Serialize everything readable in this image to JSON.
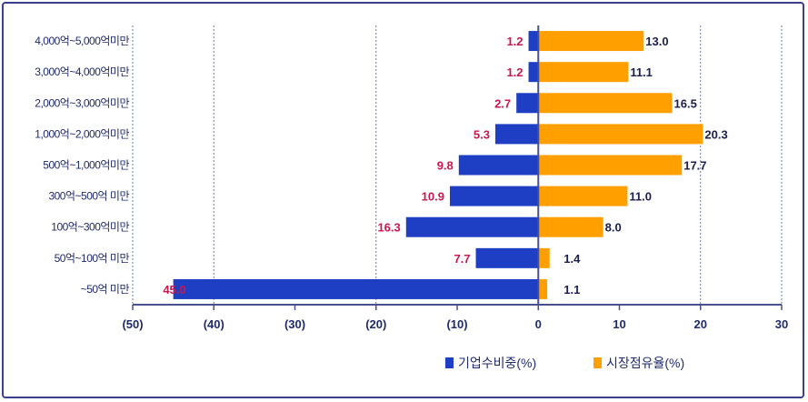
{
  "chart_data": {
    "type": "bar",
    "orientation": "horizontal-diverging",
    "categories": [
      "4,000억~5,000억미만",
      "3,000억~4,000억미만",
      "2,000억~3,000억미만",
      "1,000억~2,000억미만",
      "500억~1,000억미만",
      "300억~500억  미만",
      "100억~300억미만",
      "50억~100억  미만",
      "~50억  미만"
    ],
    "series": [
      {
        "name": "기업수비중(%)",
        "color": "#1e3fc4",
        "direction": "left",
        "values": [
          1.2,
          1.2,
          2.7,
          5.3,
          9.8,
          10.9,
          16.3,
          7.7,
          45.0
        ],
        "value_labels": [
          "1.2",
          "1.2",
          "2.7",
          "5.3",
          "9.8",
          "10.9",
          "16.3",
          "7.7",
          "45.0"
        ]
      },
      {
        "name": "시장점유율(%)",
        "color": "#ffa000",
        "direction": "right",
        "values": [
          13.0,
          11.1,
          16.5,
          20.3,
          17.7,
          11.0,
          8.0,
          1.4,
          1.1
        ],
        "value_labels": [
          "13.0",
          "11.1",
          "16.5",
          "20.3",
          "17.7",
          "11.0",
          "8.0",
          "1.4",
          "1.1"
        ]
      }
    ],
    "x_ticks": [
      "(50)",
      "(40)",
      "(30)",
      "(20)",
      "(10)",
      "0",
      "10",
      "20",
      "30"
    ],
    "xlim": [
      -50,
      30
    ],
    "gridlines": "vertical dotted",
    "legend_position": "bottom-center"
  }
}
